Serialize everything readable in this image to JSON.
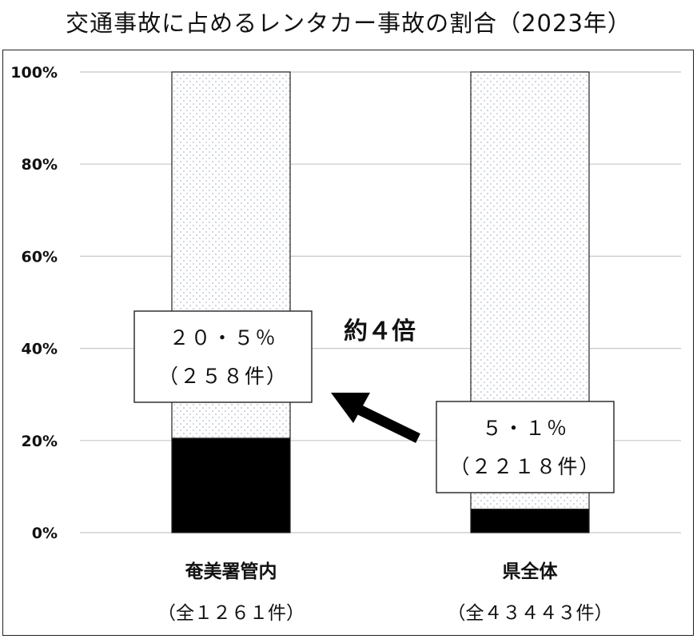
{
  "title": "交通事故に占めるレンタカー事故の割合（2023年）",
  "chart_data": {
    "type": "bar",
    "stacked": true,
    "ylim": [
      0,
      100
    ],
    "yticks": [
      "0%",
      "20%",
      "40%",
      "60%",
      "80%",
      "100%"
    ],
    "grid": true,
    "categories": [
      {
        "name": "奄美署管内",
        "total_label": "（全１２６１件）"
      },
      {
        "name": "県全体",
        "total_label": "（全４３４４３件）"
      }
    ],
    "series": [
      {
        "values": [
          20.5,
          5.1
        ],
        "color": "#000000"
      },
      {
        "values": [
          79.5,
          94.9
        ],
        "color": "#ffffff",
        "pattern": "dots"
      }
    ],
    "annotations": [
      {
        "line1": "２０・５％",
        "line2": "（２５８件）"
      },
      {
        "line1": "５・１％",
        "line2": "（２２１８件）"
      }
    ],
    "ratio_label": "約４倍"
  }
}
